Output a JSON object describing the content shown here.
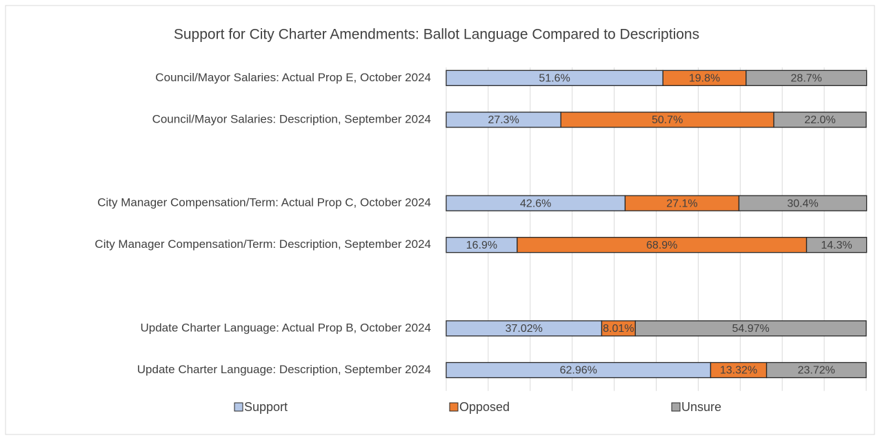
{
  "chart_data": {
    "type": "stacked_barh",
    "title": "Support for City Charter Amendments: Ballot Language Compared to Descriptions",
    "categories": [
      "Council/Mayor Salaries: Actual Prop E, October 2024",
      "Council/Mayor Salaries: Description, September 2024",
      null,
      "City Manager Compensation/Term: Actual Prop C, October 2024",
      "City Manager Compensation/Term: Description, September 2024",
      null,
      "Update Charter Language: Actual Prop B, October 2024",
      "Update Charter Language: Description, September 2024"
    ],
    "series": [
      {
        "name": "Support",
        "color": "#b4c7e7",
        "values": [
          51.6,
          27.3,
          null,
          42.6,
          16.9,
          null,
          37.02,
          62.96
        ],
        "value_labels": [
          "51.6%",
          "27.3%",
          null,
          "42.6%",
          "16.9%",
          null,
          "37.02%",
          "62.96%"
        ]
      },
      {
        "name": "Opposed",
        "color": "#ed7d31",
        "values": [
          19.8,
          50.7,
          null,
          27.1,
          68.9,
          null,
          8.01,
          13.32
        ],
        "value_labels": [
          "19.8%",
          "50.7%",
          null,
          "27.1%",
          "68.9%",
          null,
          "8.01%",
          "13.32%"
        ]
      },
      {
        "name": "Unsure",
        "color": "#a5a5a5",
        "values": [
          28.7,
          22.0,
          null,
          30.4,
          14.3,
          null,
          54.97,
          23.72
        ],
        "value_labels": [
          "28.7%",
          "22.0%",
          null,
          "30.4%",
          "14.3%",
          null,
          "54.97%",
          "23.72%"
        ]
      }
    ],
    "xlim": [
      0,
      100
    ],
    "xticks": [
      0,
      10,
      20,
      30,
      40,
      50,
      60,
      70,
      80,
      90,
      100
    ],
    "grid": true,
    "legend": "bottom"
  }
}
